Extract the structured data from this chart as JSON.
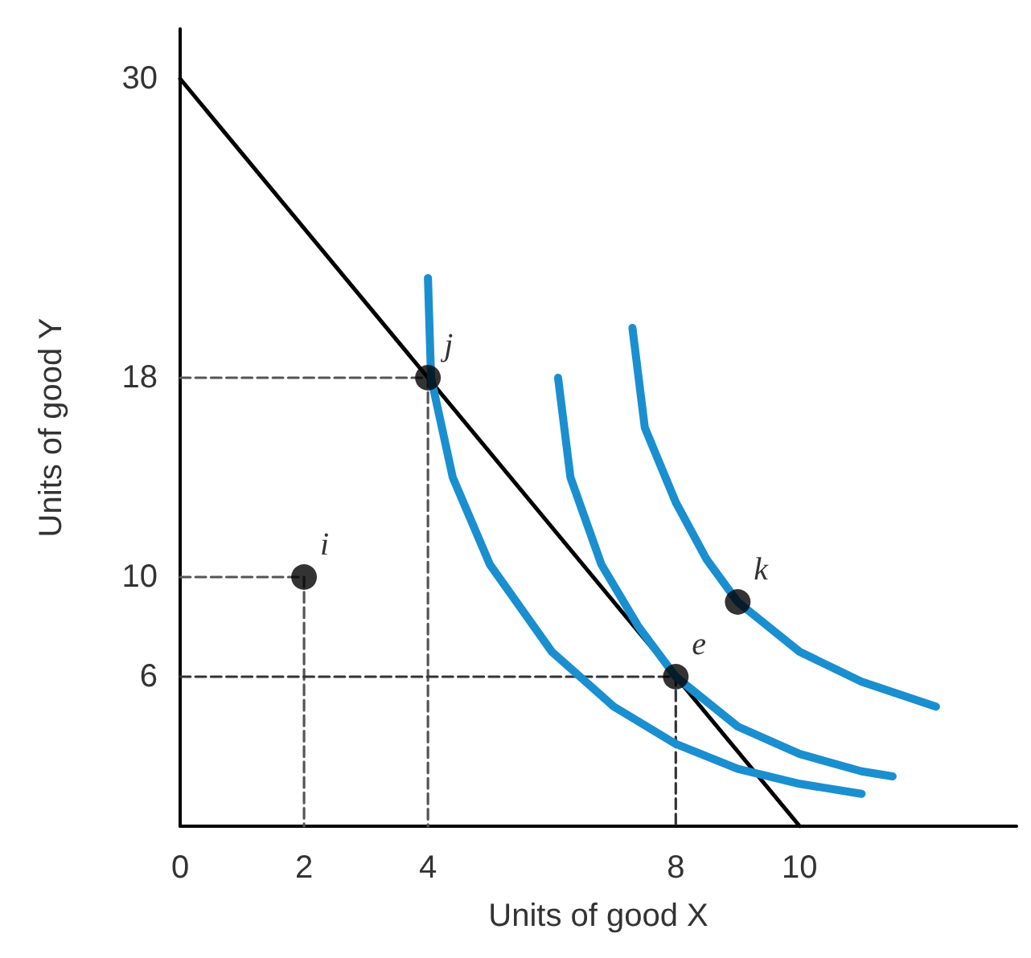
{
  "chart_data": {
    "type": "line",
    "xlabel": "Units of good X",
    "ylabel": "Units of good Y",
    "xlim": [
      0,
      13.5
    ],
    "ylim": [
      0,
      32
    ],
    "xticks": [
      0,
      2,
      4,
      8,
      10
    ],
    "yticks": [
      6,
      10,
      18,
      30
    ],
    "grid": false,
    "series": [
      {
        "color": "#555555",
        "line_style": "dashed",
        "marker": "none",
        "x": [
          0,
          2,
          2
        ],
        "values": [
          10,
          10,
          0
        ]
      },
      {
        "color": "#555555",
        "line_style": "dashed",
        "marker": "none",
        "x": [
          0,
          4,
          4
        ],
        "values": [
          18,
          18,
          0
        ]
      },
      {
        "color": "#333333",
        "line_style": "dashed",
        "marker": "none",
        "x": [
          0,
          8,
          8
        ],
        "values": [
          6,
          6,
          0
        ]
      },
      {
        "color": "#000000",
        "line_style": "solid",
        "marker": "none",
        "x": [
          0,
          10
        ],
        "values": [
          30,
          0
        ]
      },
      {
        "color": "#1a8fd0",
        "line_style": "solid",
        "marker": "none",
        "x": [
          4,
          4.05,
          4.4,
          5,
          6,
          7,
          8,
          9,
          10,
          11
        ],
        "values": [
          22,
          18,
          14,
          10.5,
          7,
          4.8,
          3.3,
          2.3,
          1.7,
          1.3
        ]
      },
      {
        "color": "#1a8fd0",
        "line_style": "solid",
        "marker": "none",
        "x": [
          6.1,
          6.3,
          6.8,
          7.4,
          8,
          9,
          10,
          11,
          11.5
        ],
        "values": [
          18,
          14,
          10.5,
          8,
          6,
          4,
          2.9,
          2.2,
          2
        ]
      },
      {
        "color": "#1a8fd0",
        "line_style": "solid",
        "marker": "none",
        "x": [
          7.3,
          7.5,
          8,
          8.5,
          9,
          10,
          11,
          12.2
        ],
        "values": [
          20,
          16,
          13,
          10.7,
          9,
          7,
          5.8,
          4.8
        ]
      },
      {
        "type": "scatter",
        "color": "#000000",
        "marker": "circle",
        "x": [
          2,
          4,
          8,
          9
        ],
        "values": [
          10,
          18,
          6,
          9
        ]
      }
    ],
    "annotations": [
      {
        "text": "i",
        "x": 2,
        "y": 10
      },
      {
        "text": "j",
        "x": 4,
        "y": 18
      },
      {
        "text": "e",
        "x": 8,
        "y": 6
      },
      {
        "text": "k",
        "x": 9,
        "y": 9
      }
    ]
  }
}
